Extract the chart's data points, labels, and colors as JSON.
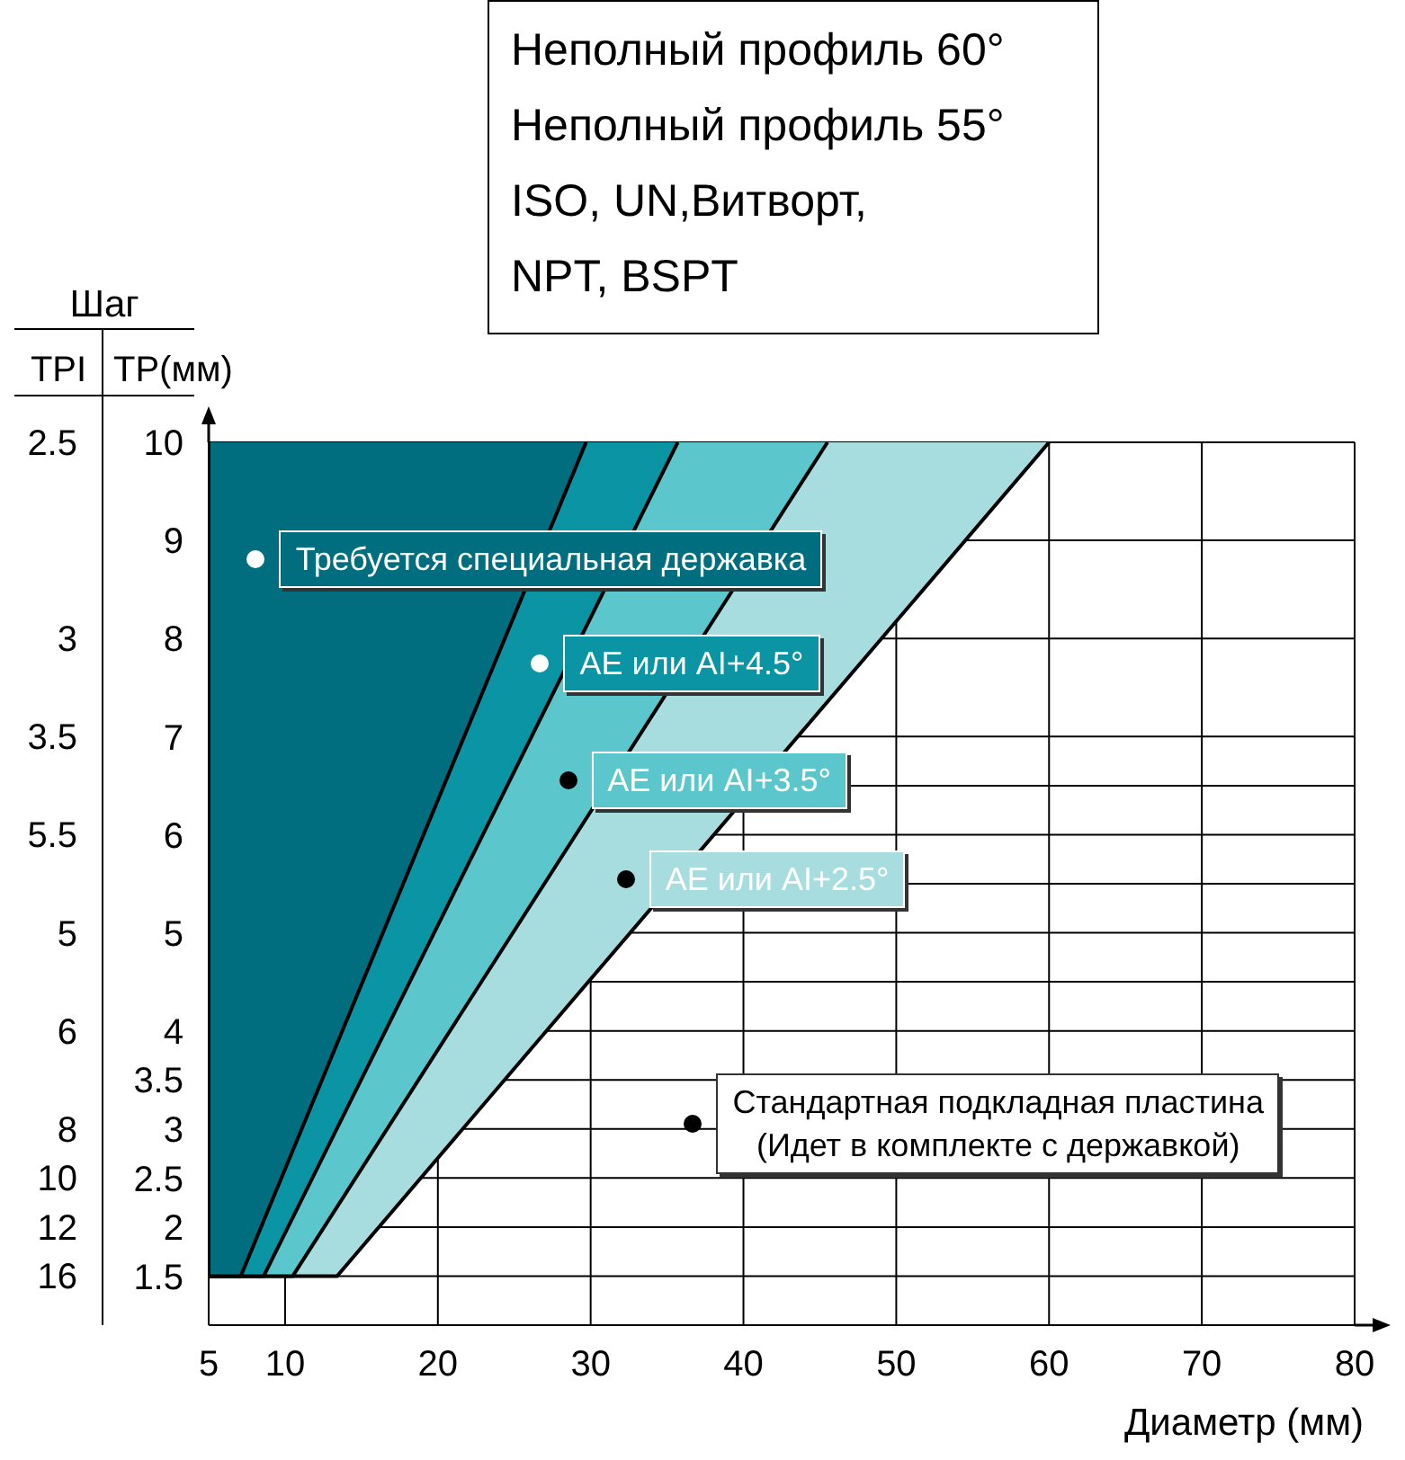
{
  "chart_data": {
    "type": "area",
    "title": "Шаг",
    "xlabel": "Диаметр (мм)",
    "ylabel": "TP(мм)",
    "y2label": "TPI",
    "xlim": [
      5,
      80
    ],
    "xticks": [
      5,
      10,
      20,
      30,
      40,
      50,
      60,
      70,
      80
    ],
    "ylim": [
      1,
      10
    ],
    "yticks": [
      10,
      9,
      8,
      7,
      {
        "value": 6.5,
        "label": null
      },
      6,
      {
        "value": 5.5,
        "label": null
      },
      5,
      {
        "value": 4.5,
        "label": null
      },
      4,
      3.5,
      3,
      2.5,
      2,
      1.5
    ],
    "grid": true,
    "y2_categories": [
      "2.5",
      null,
      null,
      null,
      "3",
      null,
      "3.5",
      null,
      "5.5",
      null,
      "5",
      null,
      "6",
      null,
      "8",
      "10",
      "12",
      "16",
      null
    ],
    "series": [
      {
        "color": "#006e7f",
        "x": [
          5,
          5,
          7.1,
          29.7
        ],
        "values": [
          10,
          1.5,
          1.5,
          10
        ]
      },
      {
        "color": "#0a94a4",
        "x": [
          5,
          5,
          8.6,
          35.7
        ],
        "values": [
          10,
          1.5,
          1.5,
          10
        ]
      },
      {
        "color": "#5bc6cb",
        "x": [
          5,
          5,
          10.5,
          45.5
        ],
        "values": [
          10,
          1.5,
          1.5,
          10
        ]
      },
      {
        "color": "#a8dde0",
        "x": [
          5,
          5,
          13.4,
          60
        ],
        "values": [
          10,
          1.5,
          1.5,
          10
        ]
      }
    ],
    "annotations": [
      "Неполный профиль 60°",
      "Неполный профиль 55°",
      "ISO, UN,Витворт,",
      "NPT, BSPT",
      {
        "text": "Требуется специальная державка",
        "x": 8.1,
        "y": 8.8
      },
      {
        "text": "AE или AI+4.5°",
        "x": 26.7,
        "y": 7.75
      },
      {
        "text": "AE или AI+3.5°",
        "x": 28.5,
        "y": 6.55
      },
      {
        "text": "AE или AI+2.5°",
        "x": 32.3,
        "y": 5.55
      },
      {
        "text": "Стандартная подкладная пластина\n(Идет в комплекте с державкой)",
        "x": 36.7,
        "y": 3.05
      }
    ]
  }
}
